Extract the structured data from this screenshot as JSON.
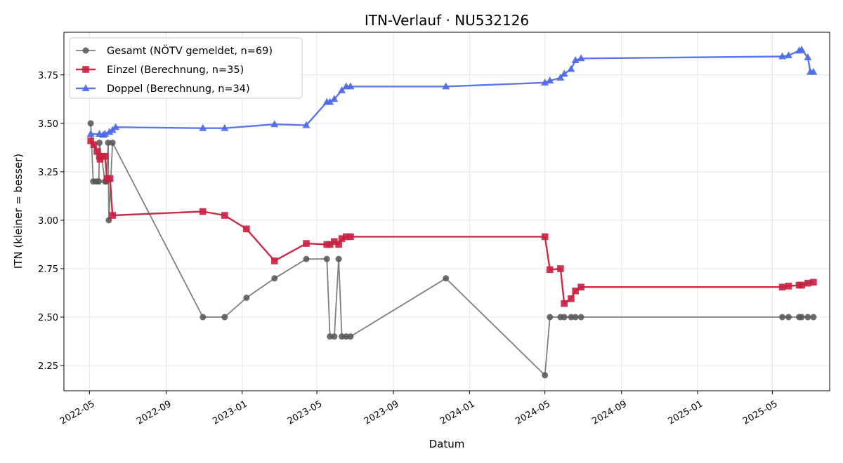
{
  "chart_data": {
    "type": "line",
    "title": "ITN-Verlauf · NU532126",
    "xlabel": "Datum",
    "ylabel": "ITN  (kleiner = besser)",
    "x_type": "date",
    "xlim": [
      "2022-03-21",
      "2025-08-01"
    ],
    "ylim": [
      2.12,
      3.97
    ],
    "x_ticks": [
      "2022-05-01",
      "2022-09-01",
      "2023-01-01",
      "2023-05-01",
      "2023-09-01",
      "2024-01-01",
      "2024-05-01",
      "2024-09-01",
      "2025-01-01",
      "2025-05-01"
    ],
    "x_tick_labels": [
      "2022-05",
      "2022-09",
      "2023-01",
      "2023-05",
      "2023-09",
      "2024-01",
      "2024-05",
      "2024-09",
      "2025-01",
      "2025-05"
    ],
    "y_ticks": [
      2.25,
      2.5,
      2.75,
      3.0,
      3.25,
      3.5,
      3.75
    ],
    "y_tick_labels": [
      "2.25",
      "2.50",
      "2.75",
      "3.00",
      "3.25",
      "3.50",
      "3.75"
    ],
    "grid": true,
    "legend_position": "top-left",
    "series": [
      {
        "name": "Gesamt (NÖTV gemeldet, n=69)",
        "color": "#555555",
        "marker": "circle",
        "points": [
          [
            "2022-05-03",
            3.5
          ],
          [
            "2022-05-07",
            3.2
          ],
          [
            "2022-05-12",
            3.2
          ],
          [
            "2022-05-16",
            3.2
          ],
          [
            "2022-05-17",
            3.4
          ],
          [
            "2022-05-26",
            3.2
          ],
          [
            "2022-05-28",
            3.2
          ],
          [
            "2022-05-31",
            3.4
          ],
          [
            "2022-06-01",
            3.0
          ],
          [
            "2022-06-07",
            3.4
          ],
          [
            "2022-10-30",
            2.5
          ],
          [
            "2022-12-04",
            2.5
          ],
          [
            "2023-01-08",
            2.6
          ],
          [
            "2023-02-22",
            2.7
          ],
          [
            "2023-04-14",
            2.8
          ],
          [
            "2023-05-17",
            2.8
          ],
          [
            "2023-05-22",
            2.4
          ],
          [
            "2023-05-29",
            2.4
          ],
          [
            "2023-06-05",
            2.8
          ],
          [
            "2023-06-10",
            2.4
          ],
          [
            "2023-06-17",
            2.4
          ],
          [
            "2023-06-24",
            2.4
          ],
          [
            "2023-11-24",
            2.7
          ],
          [
            "2024-05-01",
            2.2
          ],
          [
            "2024-05-09",
            2.5
          ],
          [
            "2024-05-26",
            2.5
          ],
          [
            "2024-06-01",
            2.5
          ],
          [
            "2024-06-12",
            2.5
          ],
          [
            "2024-06-19",
            2.5
          ],
          [
            "2024-06-28",
            2.5
          ],
          [
            "2025-05-17",
            2.5
          ],
          [
            "2025-05-27",
            2.5
          ],
          [
            "2025-06-13",
            2.5
          ],
          [
            "2025-06-17",
            2.5
          ],
          [
            "2025-06-27",
            2.5
          ],
          [
            "2025-07-06",
            2.5
          ]
        ]
      },
      {
        "name": "Einzel (Berechnung, n=35)",
        "color": "#c8203f",
        "marker": "square",
        "points": [
          [
            "2022-05-03",
            3.41
          ],
          [
            "2022-05-08",
            3.39
          ],
          [
            "2022-05-13",
            3.355
          ],
          [
            "2022-05-17",
            3.33
          ],
          [
            "2022-05-18",
            3.315
          ],
          [
            "2022-05-22",
            3.33
          ],
          [
            "2022-05-26",
            3.33
          ],
          [
            "2022-05-29",
            3.215
          ],
          [
            "2022-06-03",
            3.215
          ],
          [
            "2022-06-07",
            3.025
          ],
          [
            "2022-10-30",
            3.045
          ],
          [
            "2022-12-04",
            3.025
          ],
          [
            "2023-01-08",
            2.955
          ],
          [
            "2023-02-22",
            2.79
          ],
          [
            "2023-04-14",
            2.88
          ],
          [
            "2023-05-17",
            2.875
          ],
          [
            "2023-05-22",
            2.875
          ],
          [
            "2023-05-29",
            2.89
          ],
          [
            "2023-06-05",
            2.875
          ],
          [
            "2023-06-10",
            2.905
          ],
          [
            "2023-06-17",
            2.915
          ],
          [
            "2023-06-24",
            2.915
          ],
          [
            "2024-05-01",
            2.915
          ],
          [
            "2024-05-09",
            2.745
          ],
          [
            "2024-05-26",
            2.75
          ],
          [
            "2024-06-01",
            2.57
          ],
          [
            "2024-06-12",
            2.595
          ],
          [
            "2024-06-19",
            2.635
          ],
          [
            "2024-06-28",
            2.655
          ],
          [
            "2025-05-17",
            2.655
          ],
          [
            "2025-05-27",
            2.66
          ],
          [
            "2025-06-13",
            2.665
          ],
          [
            "2025-06-17",
            2.665
          ],
          [
            "2025-06-27",
            2.675
          ],
          [
            "2025-07-06",
            2.68
          ]
        ]
      },
      {
        "name": "Doppel (Berechnung, n=34)",
        "color": "#4a68e8",
        "marker": "triangle",
        "points": [
          [
            "2022-05-03",
            3.445
          ],
          [
            "2022-05-17",
            3.445
          ],
          [
            "2022-05-23",
            3.44
          ],
          [
            "2022-05-26",
            3.445
          ],
          [
            "2022-06-02",
            3.455
          ],
          [
            "2022-06-07",
            3.465
          ],
          [
            "2022-06-12",
            3.48
          ],
          [
            "2022-10-30",
            3.475
          ],
          [
            "2022-12-04",
            3.475
          ],
          [
            "2023-02-22",
            3.495
          ],
          [
            "2023-04-14",
            3.49
          ],
          [
            "2023-05-17",
            3.61
          ],
          [
            "2023-05-22",
            3.61
          ],
          [
            "2023-05-29",
            3.625
          ],
          [
            "2023-06-10",
            3.67
          ],
          [
            "2023-06-17",
            3.69
          ],
          [
            "2023-06-24",
            3.69
          ],
          [
            "2023-11-24",
            3.69
          ],
          [
            "2024-05-01",
            3.71
          ],
          [
            "2024-05-09",
            3.72
          ],
          [
            "2024-05-26",
            3.735
          ],
          [
            "2024-06-01",
            3.755
          ],
          [
            "2024-06-12",
            3.78
          ],
          [
            "2024-06-19",
            3.825
          ],
          [
            "2024-06-28",
            3.835
          ],
          [
            "2025-05-17",
            3.845
          ],
          [
            "2025-05-27",
            3.85
          ],
          [
            "2025-06-13",
            3.875
          ],
          [
            "2025-06-17",
            3.88
          ],
          [
            "2025-06-27",
            3.84
          ],
          [
            "2025-07-01",
            3.765
          ],
          [
            "2025-07-06",
            3.765
          ]
        ]
      }
    ]
  }
}
